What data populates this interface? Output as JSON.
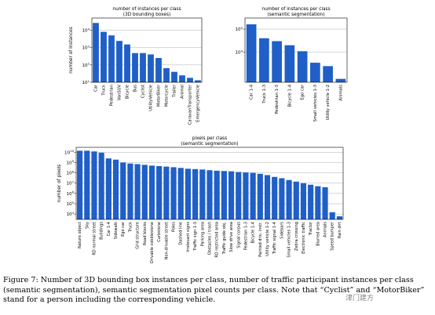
{
  "chart_data": [
    {
      "type": "bar",
      "title": "number of instances per class",
      "subtitle": "(3D bounding boxes)",
      "ylabel": "number of instances",
      "yscale": "log",
      "ylim": [
        10,
        50000
      ],
      "color": "#1f5fc7",
      "categories": [
        "Car",
        "Truck",
        "Pedestrian",
        "VanSUV",
        "Bicycle",
        "Bus",
        "Cyclist",
        "UtilityVehicle",
        "MotorBiker",
        "Motorcycle",
        "Trailer",
        "Animal",
        "CaravanTransporter",
        "EmergencyVehicle"
      ],
      "values": [
        26000,
        8000,
        5000,
        2400,
        1500,
        480,
        480,
        400,
        250,
        65,
        40,
        25,
        18,
        13
      ]
    },
    {
      "type": "bar",
      "title": "number of instances per class",
      "subtitle": "(semantic segmentation)",
      "ylabel": "",
      "yscale": "log",
      "ylim": [
        500,
        300000
      ],
      "color": "#1f5fc7",
      "categories": [
        "Car 1-4",
        "Truck 1-3",
        "Pedestrian 1-3",
        "Bicycle 1-4",
        "Ego car",
        "Small vehicles 1-3",
        "Utility vehicle 1-2",
        "Animals"
      ],
      "values": [
        160000,
        40000,
        30000,
        20000,
        11000,
        3500,
        2500,
        700
      ]
    },
    {
      "type": "bar",
      "title": "pixels per class",
      "subtitle": "(semantic segmentation)",
      "ylabel": "number of pixels",
      "yscale": "log",
      "ylim": [
        3000,
        30000000000
      ],
      "color": "#1f5fc7",
      "categories": [
        "Nature object",
        "Sky",
        "RD normal street",
        "Buildings",
        "Car 1-4",
        "Sidewalk",
        "Ego car",
        "Truck",
        "Grid structure",
        "Road blocks",
        "Drivable cobblestone",
        "Curbstone",
        "Non-drivable street",
        "Poles",
        "Dashed line",
        "Irrelevant signs",
        "Traffic sign 1-3",
        "Parking area",
        "Obstacles / trash",
        "RD restricted area",
        "Traffic guide obj.",
        "Slow drive area",
        "Signal corpus",
        "Pedestrian 1-3",
        "Bicycle 1-4",
        "Painted driv. instr.",
        "Utility vehicle 1-2",
        "Traffic signal 1-4",
        "Sidebars",
        "Small vehicles 1-3",
        "Zebra crossing",
        "Electronic traffic",
        "Tractor",
        "Blurred area",
        "Animals",
        "Speed bumper",
        "Rain dirt"
      ],
      "values": [
        14000000000,
        14000000000,
        12000000000,
        9000000000,
        2500000000,
        1900000000,
        1000000000,
        800000000,
        700000000,
        600000000,
        500000000,
        450000000,
        400000000,
        350000000,
        300000000,
        250000000,
        230000000,
        210000000,
        180000000,
        160000000,
        150000000,
        140000000,
        120000000,
        110000000,
        100000000,
        80000000,
        60000000,
        40000000,
        30000000,
        20000000,
        14000000,
        10000000,
        7000000,
        5000000,
        4000000,
        15000,
        6000
      ]
    }
  ],
  "caption": "Figure 7: Number of 3D bounding box instances per class, number of traffic participant instances per class (semantic segmentation), semantic segmentation pixel counts per class. Note that “Cyclist” and “MotorBiker” stand for a person including the corresponding vehicle.",
  "watermark": "津门建方"
}
